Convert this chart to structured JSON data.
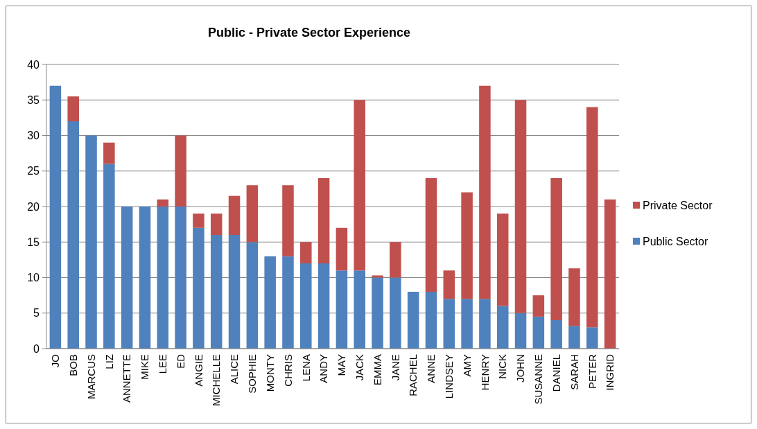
{
  "chart_data": {
    "type": "bar",
    "title": "Public - Private Sector Experience",
    "stacked": true,
    "categories": [
      "JO",
      "BOB",
      "MARCUS",
      "LIZ",
      "ANNETTE",
      "MIKE",
      "LEE",
      "ED",
      "ANGIE",
      "MICHELLE",
      "ALICE",
      "SOPHIE",
      "MONTY",
      "CHRIS",
      "LENA",
      "ANDY",
      "MAY",
      "JACK",
      "EMMA",
      "JANE",
      "RACHEL",
      "ANNE",
      "LINDSEY",
      "AMY",
      "HENRY",
      "NICK",
      "JOHN",
      "SUSANNE",
      "DANIEL",
      "SARAH",
      "PETER",
      "INGRID"
    ],
    "series": [
      {
        "name": "Public Sector",
        "color": "#4f81bd",
        "values": [
          37,
          32,
          30,
          26,
          20,
          20,
          20,
          20,
          17,
          16,
          16,
          15,
          13,
          13,
          12,
          12,
          11,
          11,
          10,
          10,
          8,
          8,
          7,
          7,
          7,
          6,
          5,
          4.5,
          4,
          3.2,
          3,
          0
        ]
      },
      {
        "name": "Private Sector",
        "color": "#c0504d",
        "values": [
          0,
          3.5,
          0,
          3,
          0,
          0,
          1,
          10,
          2,
          3,
          5.5,
          8,
          0,
          10,
          3,
          12,
          6,
          24,
          0.3,
          5,
          0,
          16,
          4,
          15,
          30,
          13,
          30,
          3,
          20,
          8.1,
          31,
          21
        ]
      }
    ],
    "ylim": [
      0,
      40
    ],
    "yticks": [
      0,
      5,
      10,
      15,
      20,
      25,
      30,
      35,
      40
    ],
    "grid": "y",
    "legend": "right"
  }
}
